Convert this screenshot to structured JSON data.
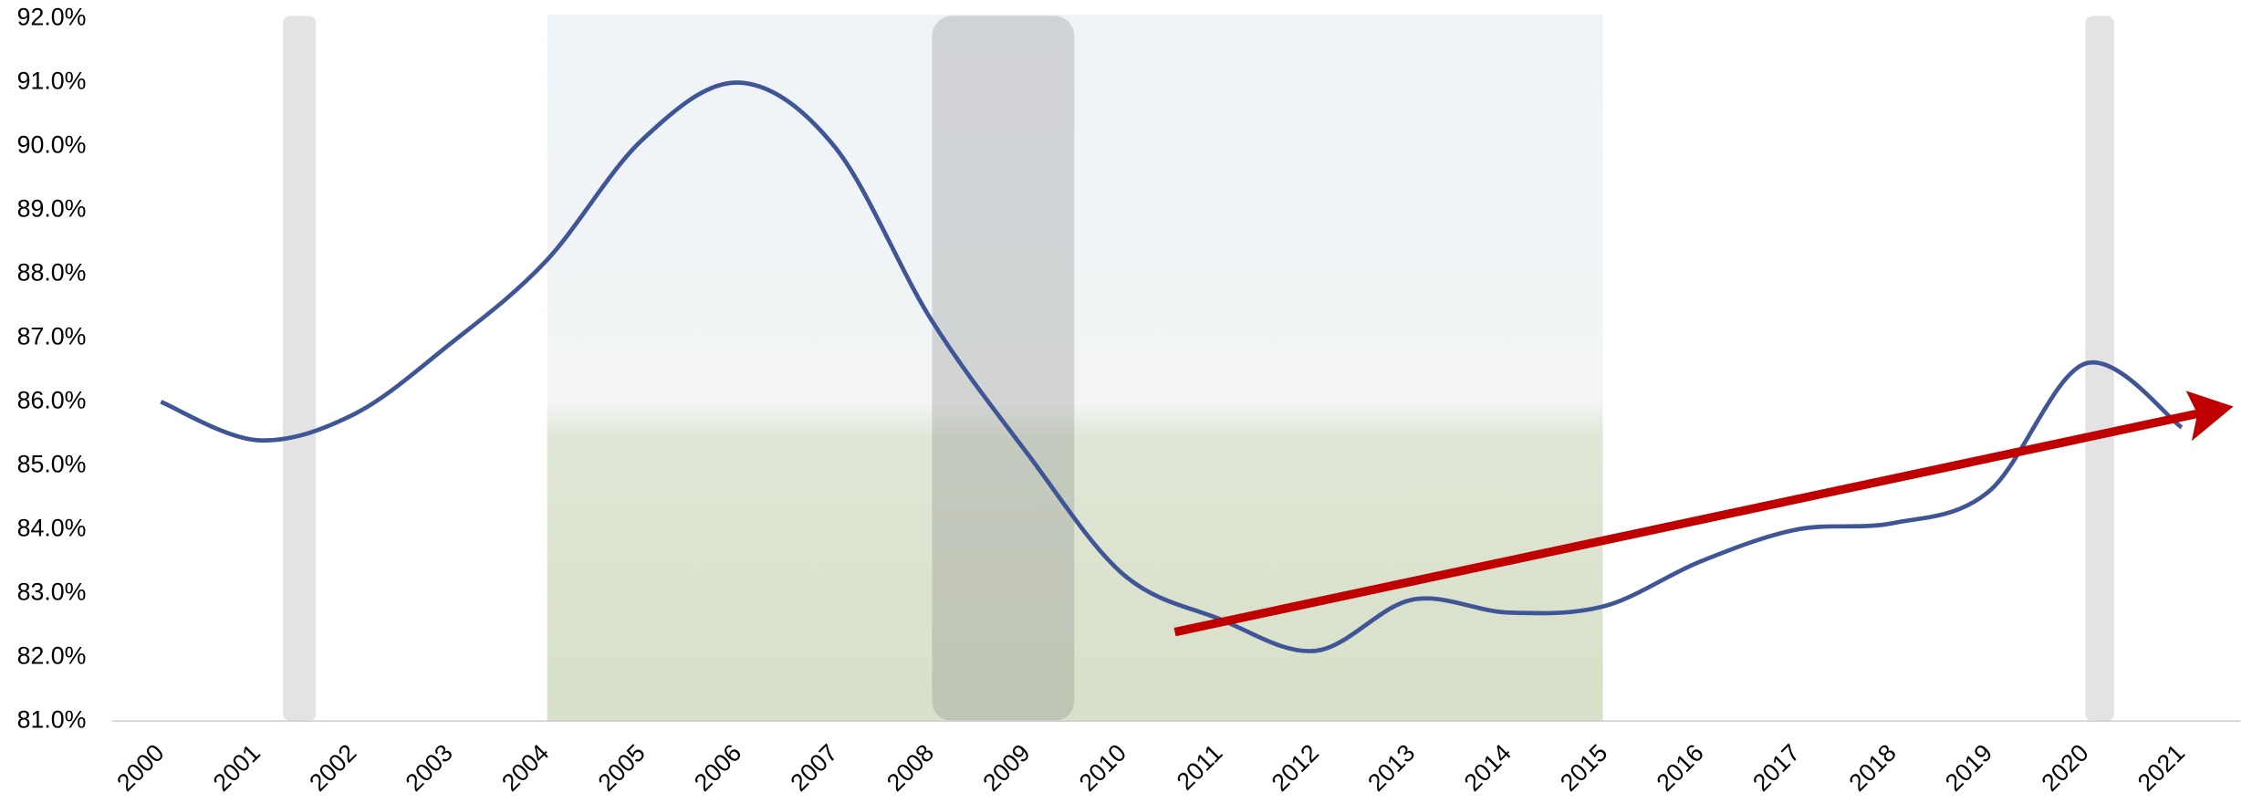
{
  "chart_data": {
    "type": "line",
    "categories": [
      "2000",
      "2001",
      "2002",
      "2003",
      "2004",
      "2005",
      "2006",
      "2007",
      "2008",
      "2009",
      "2010",
      "2011",
      "2012",
      "2013",
      "2014",
      "2015",
      "2016",
      "2017",
      "2018",
      "2019",
      "2020",
      "2021"
    ],
    "series": [
      {
        "color": "#3f5595",
        "values": [
          86.0,
          85.4,
          85.8,
          86.9,
          88.2,
          90.1,
          91.0,
          90.0,
          87.3,
          85.2,
          83.3,
          82.6,
          82.1,
          82.9,
          82.7,
          82.8,
          83.5,
          84.0,
          84.1,
          84.6,
          86.6,
          85.6
        ]
      }
    ],
    "ylim": [
      81,
      92
    ],
    "yticks": [
      {
        "value": 81,
        "label": "81.0%"
      },
      {
        "value": 82,
        "label": "82.0%"
      },
      {
        "value": 83,
        "label": "83.0%"
      },
      {
        "value": 84,
        "label": "84.0%"
      },
      {
        "value": 85,
        "label": "85.0%"
      },
      {
        "value": 86,
        "label": "86.0%"
      },
      {
        "value": 87,
        "label": "87.0%"
      },
      {
        "value": 88,
        "label": "88.0%"
      },
      {
        "value": 89,
        "label": "89.0%"
      },
      {
        "value": 90,
        "label": "90.0%"
      },
      {
        "value": 91,
        "label": "91.0%"
      },
      {
        "value": 92,
        "label": "92.0%"
      }
    ],
    "grid": false
  }
}
